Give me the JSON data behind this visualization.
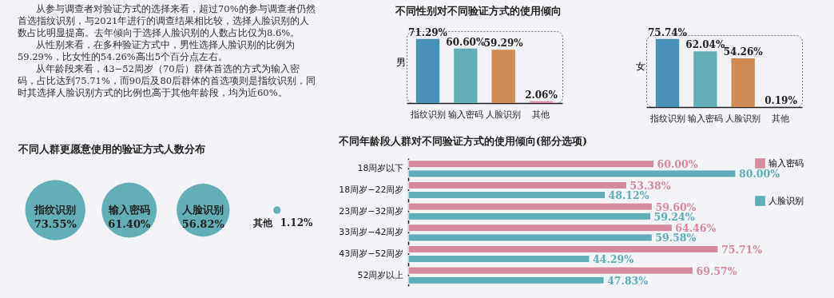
{
  "chart_data": [
    {
      "type": "other",
      "annotations": [
        "从参与调查者对验证方式的选择来看，超过70%的参与调查者仍然首选指纹识别，与2021年进行的调查结果相比较，选择人脸识别的人数占比明显提高。去年倾向于选择人脸识别的人数占比仅为8.6%。",
        "从性别来看，在多种验证方式中，男性选择人脸识别的比例为59.29%，比女性的54.26%高出5个百分点左右。",
        "从年龄段来看，43−52周岁（70后）群体首选的方式为输入密码，占比达到75.71%，而90后及80后群体的首选项则是指纹识别，同时其选择人脸识别方式的比例也高于其他年龄段，均为近60%。"
      ]
    },
    {
      "type": "other",
      "title": "不同人群更愿意使用的验证方式人数分布",
      "categories": [
        "指纹识别",
        "输入密码",
        "人脸识别",
        "其他"
      ],
      "values": [
        73.55,
        61.4,
        56.82,
        1.12
      ],
      "value_labels": [
        "73.55%",
        "61.40%",
        "56.82%",
        "1.12%"
      ],
      "color": "#64afb7"
    },
    {
      "type": "bar",
      "title": "不同性别对不同验证方式的使用倾向",
      "ylabel": "男",
      "categories": [
        "指纹识别",
        "输入密码",
        "人脸识别",
        "其他"
      ],
      "values": [
        71.29,
        60.6,
        59.29,
        2.06
      ],
      "value_labels": [
        "71.29%",
        "60.60%",
        "59.29%",
        "2.06%"
      ],
      "colors": [
        "#4a91b8",
        "#64afb7",
        "#cf8c56",
        "#d88fa2"
      ]
    },
    {
      "type": "bar",
      "ylabel": "女",
      "categories": [
        "指纹识别",
        "输入密码",
        "人脸识别",
        "其他"
      ],
      "values": [
        75.74,
        62.04,
        54.26,
        0.19
      ],
      "value_labels": [
        "75.74%",
        "62.04%",
        "54.26%",
        "0.19%"
      ],
      "colors": [
        "#4a91b8",
        "#64afb7",
        "#cf8c56",
        "#d88fa2"
      ]
    },
    {
      "type": "bar",
      "orientation": "horizontal",
      "title": "不同年龄段人群对不同验证方式的使用倾向(部分选项)",
      "legend": "right",
      "categories": [
        "18周岁以下",
        "18周岁−22周岁",
        "23周岁−32周岁",
        "33周岁−42周岁",
        "43周岁−52周岁",
        "52周岁以上"
      ],
      "series": [
        {
          "name": "输入密码",
          "color": "#d68a9e",
          "values": [
            60.0,
            53.38,
            59.6,
            64.46,
            75.71,
            69.57
          ],
          "value_labels": [
            "60.00%",
            "53.38%",
            "59.60%",
            "64.46%",
            "75.71%",
            "69.57%"
          ]
        },
        {
          "name": "人脸识别",
          "color": "#5fadb7",
          "values": [
            80.0,
            48.12,
            59.24,
            59.58,
            44.29,
            47.83
          ],
          "value_labels": [
            "80.00%",
            "48.12%",
            "59.24%",
            "59.58%",
            "44.29%",
            "47.83%"
          ]
        }
      ]
    }
  ]
}
